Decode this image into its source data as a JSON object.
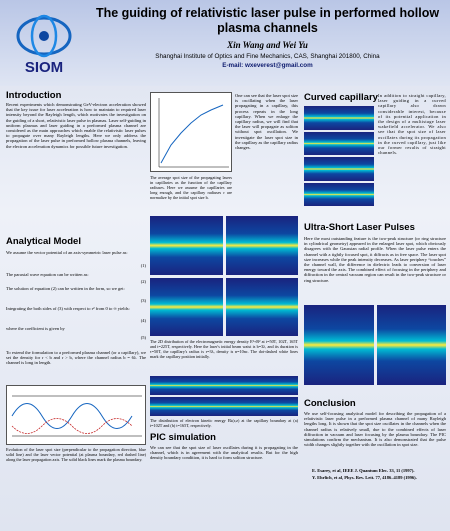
{
  "header": {
    "title": "The guiding of relativistic laser pulse in performed hollow plasma channels",
    "authors": "Xin Wang and Wei Yu",
    "affiliation": "Shanghai Institute of Optics and Fine Mechanics, CAS, Shanghai 201800, China",
    "email": "E-mail: wxeverest@gmail.com",
    "logo": "SIOM"
  },
  "introduction": {
    "heading": "Introduction",
    "text": "Recent experiments which demonstrating GeV-electron acceleration showed that the key issue for laser acceleration is how to maintain to required laser intensity beyond the Rayleigh length, which motivates the investigation on the guiding of a short, relativistic laser pulse in plasmas. Laser self-guiding in uniform plasmas and laser guiding in a preformed plasma channel are considered as the main approaches which enable the relativistic laser pulses to propagate over many Rayleigh lengths. Here we only address the propagation of the laser pulse in preformed hollow plasma channels, leaving the electron acceleration dynamics for possible future investigation."
  },
  "analytical_model": {
    "heading": "Analytical Model",
    "paragraphs": [
      "We assume the vector potential of an axis-symmetric laser pulse as:",
      "The paraxial wave equation can be written as:",
      "The solution of equation (2) can be written in the form, so we get:",
      "Integrating the both sides of (3) with respect to r² from 0 to ∞ yields:",
      "where the coefficient is given by",
      "To extend the formulation to a preformed plasma channel (or a capillary), we set the density for r < b and r > b, where the channel radius b = 6λ. The channel is long in length."
    ],
    "equation_numbers": [
      "(1)",
      "(2)",
      "(3)",
      "(4)",
      "(5)"
    ],
    "caption": "Evolution of the laser spot size (perpendicular to the propagation direction, blue solid line) and the laser vector potential (at plasma boundary, red dashed line) along the laser propagation axis. The solid black lines mark the plasma boundary."
  },
  "spot_size": {
    "caption": "The average spot size of the propagating lasers in capillaries as the function of the capillary radiuses. Here we assume the capillaries are long enough, and the capillary radiuses r are normalize by the initial spot size b.",
    "text": "One can see that the laser spot size is oscillating when the laser propagating in a capillary, this process repeats in the long capillary. When we enlarge the capillary radius, we will find that the laser will propagate as soliton without spot oscillation. We investigate the laser spot size in the capillary as the capillary radius changes."
  },
  "curved_capillary": {
    "heading": "Curved capillary",
    "text": "In addition to straight capillary, laser guiding in a curved capillary also drawn considerable interest, because of its potential application in the design of a multistage laser wakefield accelerator. We also see that the spot size of laser oscillates during its propagation in the curved capillary, just like our former results of straight channels."
  },
  "ultra_short": {
    "heading": "Ultra-Short Laser Pulses",
    "text": "Here the most outstanding feature is the two-peak structure (or ring structure in cylindrical geometry) appeared in the enlarged laser spot, which obviously disagrees with the Gaussian radial profile. When the laser pulse enters the channel with a tightly focused spot, it diffracts as in free space. The laser spot size increases while the peak intensity decreases. As laser periphery “touches” the channel wall, the difference in dielectric leads to conversion of laser energy toward the axis. The combined effect of focusing in the periphery and diffraction in the central vacuum region can result in the two-peak structure or ring structure."
  },
  "energy_density": {
    "caption": "The 2D distribution of the electromagnetic energy density E²+B² at t=50T, 102T, 165T and t=225T, respectively. Here the laser's initial beam waist is b=3λ, and its duration is τ=50T, the capillary's radius is r=3λ, density is n=10nc. The dot-dashed white lines mark the capillary position initially."
  },
  "electron_energy": {
    "caption": "The distribution of electron kinetic energy Ek(r,z) at the capillary boundary at (a) t=102T and (b) t=165T, respectively."
  },
  "pic_simulation": {
    "heading": "PIC simulation",
    "text": "We can see that the spot size of laser oscillates during it is propagating in the channel, which is in agreement with the analytical results. But for the high density boundary condition, it is hard to form soliton structure."
  },
  "conclusion": {
    "heading": "Conclusion",
    "text": "We use self-focusing analytical model for describing the propagation of a relativistic laser pulse in a preformed plasma channel of many Rayleigh lengths long. It is shown that the spot size oscillates in the channels when the channel radius is relatively small, due to the combined effects of laser diffraction in vacuum and laser focusing by the plasma boundary. The PIC simulations confirm the mechanism. It is also demonstrated that the pulse width changes slightly together with the oscillation in spot size.",
    "references": [
      "E. Esarey, et al, IEEE J. Quantum Elec. 33, 11 (1997).",
      "Y. Ehrlich, et al, Phys. Rev. Lett. 77, 4186–4189 (1996)."
    ]
  }
}
